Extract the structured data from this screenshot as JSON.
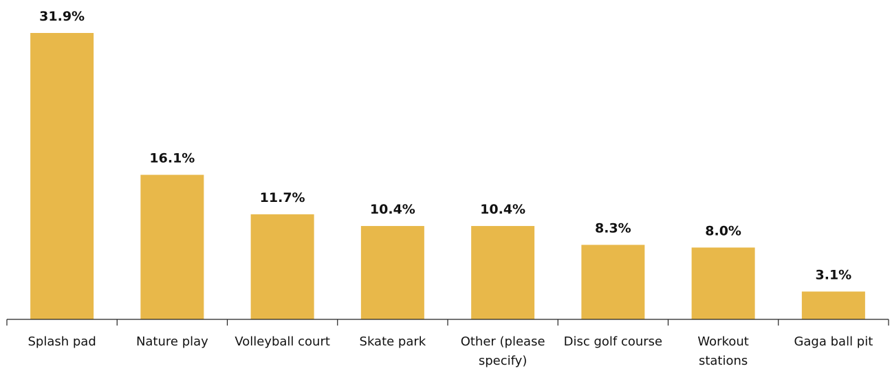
{
  "chart_data": {
    "type": "bar",
    "categories": [
      "Splash pad",
      "Nature play",
      "Volleyball court",
      "Skate park",
      "Other (please specify)",
      "Disc golf course",
      "Workout stations",
      "Gaga ball pit"
    ],
    "values": [
      31.9,
      16.1,
      11.7,
      10.4,
      10.4,
      8.3,
      8.0,
      3.1
    ],
    "value_labels": [
      "31.9%",
      "16.1%",
      "11.7%",
      "10.4%",
      "10.4%",
      "8.3%",
      "8.0%",
      "3.1%"
    ],
    "color": "#e8b84a"
  }
}
